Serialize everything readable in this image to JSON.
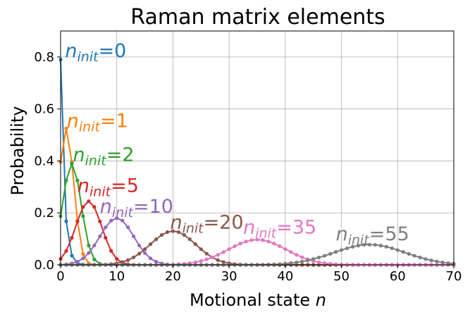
{
  "chart_data": {
    "type": "line",
    "title": "Raman matrix elements",
    "xlabel_text": "Motional state ",
    "xlabel_var": "n",
    "ylabel": "Probability",
    "xlim": [
      0,
      70
    ],
    "ylim": [
      0,
      0.9
    ],
    "xticks": [
      0,
      10,
      20,
      30,
      40,
      50,
      60,
      70
    ],
    "yticks": [
      0.0,
      0.2,
      0.4,
      0.6,
      0.8
    ],
    "grid": true,
    "x_max_state": 70,
    "series": [
      {
        "name_var": "n",
        "name_sub": "init",
        "name_value": "=0",
        "n_init": 0,
        "peak": 0.79,
        "color": "#1f77b4",
        "label_at": [
          0.8,
          0.8
        ]
      },
      {
        "name_var": "n",
        "name_sub": "init",
        "name_value": "=1",
        "n_init": 1,
        "peak": 0.525,
        "color": "#ff7f0e",
        "label_at": [
          1.1,
          0.53
        ]
      },
      {
        "name_var": "n",
        "name_sub": "init",
        "name_value": "=2",
        "n_init": 2,
        "peak": 0.39,
        "color": "#2ca02c",
        "label_at": [
          2.2,
          0.4
        ]
      },
      {
        "name_var": "n",
        "name_sub": "init",
        "name_value": "=5",
        "n_init": 5,
        "peak": 0.245,
        "color": "#d62728",
        "label_at": [
          3.0,
          0.28
        ]
      },
      {
        "name_var": "n",
        "name_sub": "init",
        "name_value": "=10",
        "n_init": 10,
        "peak": 0.18,
        "color": "#9467bd",
        "label_at": [
          7.0,
          0.2
        ]
      },
      {
        "name_var": "n",
        "name_sub": "init",
        "name_value": "=20",
        "n_init": 20,
        "peak": 0.13,
        "color": "#8c564b",
        "label_at": [
          19.5,
          0.14
        ]
      },
      {
        "name_var": "n",
        "name_sub": "init",
        "name_value": "=35",
        "n_init": 35,
        "peak": 0.097,
        "color": "#e377c2",
        "label_at": [
          32.5,
          0.12
        ]
      },
      {
        "name_var": "n",
        "name_sub": "init",
        "name_value": "=55",
        "n_init": 55,
        "peak": 0.078,
        "color": "#7f7f7f",
        "label_at": [
          49.0,
          0.095
        ]
      }
    ]
  }
}
